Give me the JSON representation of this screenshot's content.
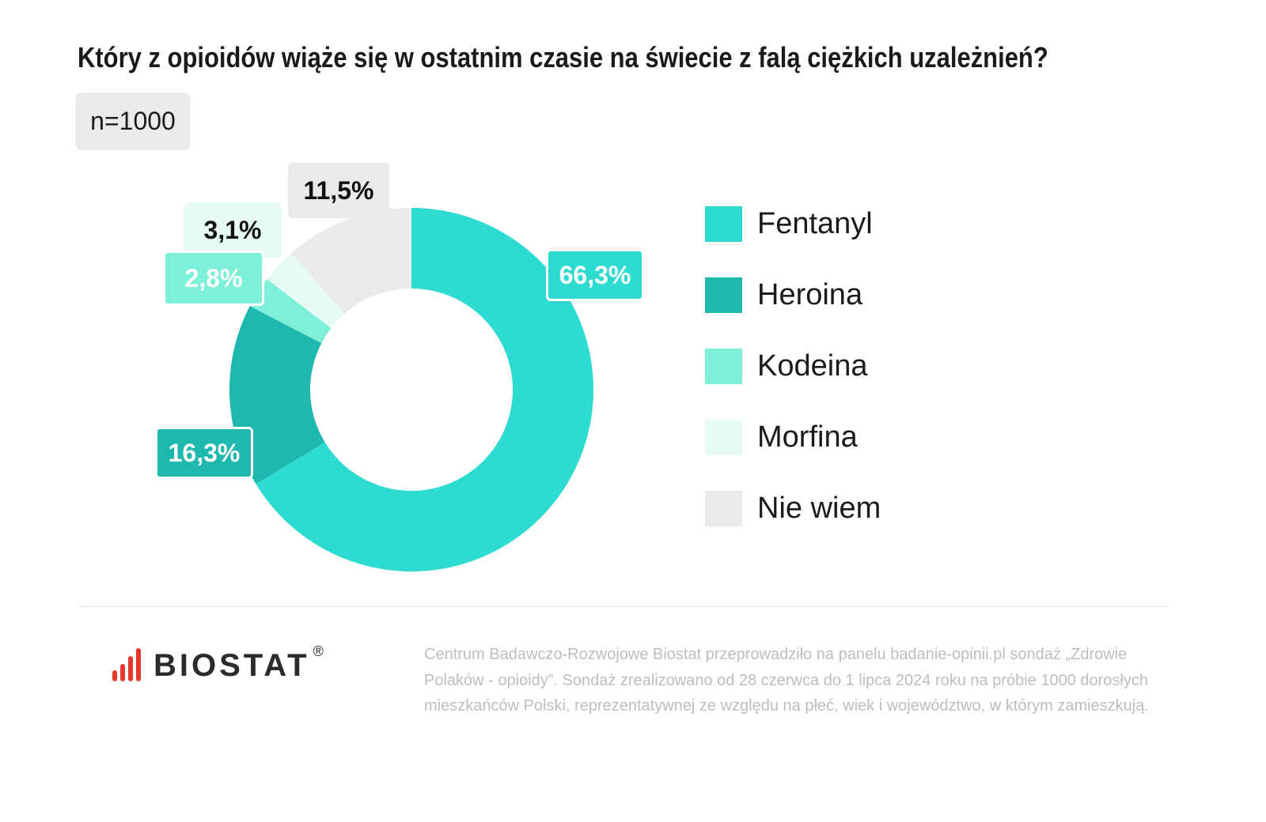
{
  "title": "Który z opioidów wiąże się w ostatnim czasie na świecie z falą ciężkich uzależnień?",
  "sample": "n=1000",
  "chart_data": {
    "type": "pie",
    "variant": "donut",
    "title": "Który z opioidów wiąże się w ostatnim czasie na świecie z falą ciężkich uzależnień?",
    "categories": [
      "Fentanyl",
      "Heroina",
      "Kodeina",
      "Morfina",
      "Nie wiem"
    ],
    "values": [
      66.3,
      16.3,
      2.8,
      3.1,
      11.5
    ],
    "data_labels": [
      "66,3%",
      "16,3%",
      "2,8%",
      "3,1%",
      "11,5%"
    ],
    "colors": [
      "#2EDBD0",
      "#1EB8AE",
      "#7EEFD8",
      "#E6FBF6",
      "#EAEAEA"
    ],
    "legend_position": "right"
  },
  "logo": {
    "text": "BIOSTAT",
    "mark": "®",
    "colors": {
      "bars": "#e8382c",
      "text": "#2b2b2b"
    }
  },
  "footer": "Centrum Badawczo-Rozwojowe Biostat przeprowadziło na panelu badanie-opinii.pl sondaż „Zdrowie Polaków - opioidy”. Sondaż zrealizowano od 28 czerwca do 1 lipca 2024 roku na próbie 1000 dorosłych mieszkańców Polski, reprezentatywnej ze względu na płeć, wiek i województwo, w którym zamieszkują."
}
